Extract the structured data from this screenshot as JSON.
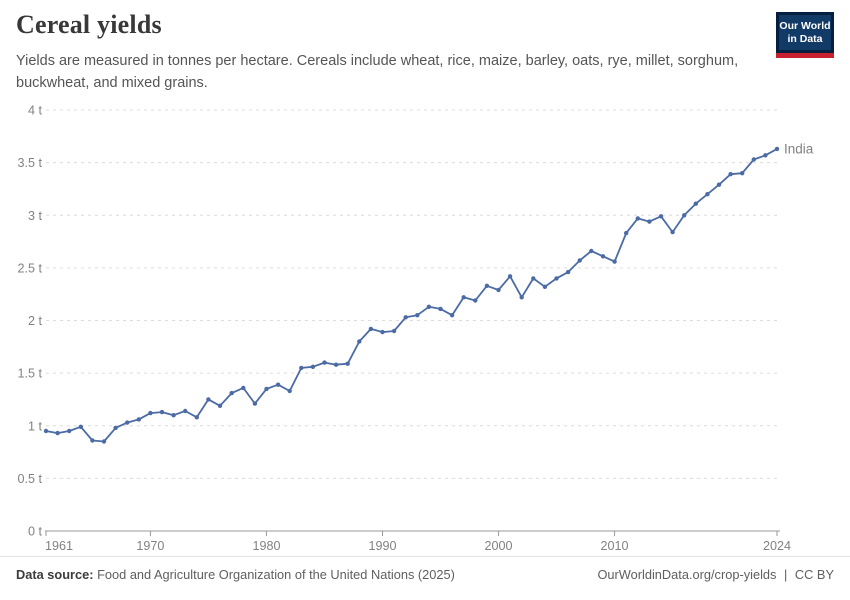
{
  "header": {
    "title": "Cereal yields",
    "subtitle": "Yields are measured in tonnes per hectare. Cereals include wheat, rice, maize, barley, oats, rye, millet, sorghum, buckwheat, and mixed grains.",
    "logo": {
      "line1": "Our World",
      "line2": "in Data"
    }
  },
  "footer": {
    "data_source_label": "Data source:",
    "data_source": "Food and Agriculture Organization of the United Nations (2025)",
    "link": "OurWorldinData.org/crop-yields",
    "separator": "|",
    "license": "CC BY"
  },
  "colors": {
    "line": "#4C6BA5",
    "grid": "#dcdcdc",
    "axis": "#999999",
    "tick_label": "#828282",
    "logo_navy": "#123A66",
    "logo_border": "#041F3F",
    "logo_red": "#C8202F"
  },
  "chart_data": {
    "type": "line",
    "title": "Cereal yields",
    "unit": "tonnes per hectare",
    "entity_label": "India",
    "grid": true,
    "legend_position": "end-of-line",
    "xlim": [
      1961,
      2024
    ],
    "ylim": [
      0,
      4
    ],
    "x_ticks": [
      1961,
      1970,
      1980,
      1990,
      2000,
      2010,
      2024
    ],
    "y_ticks": [
      {
        "value": 0,
        "label": "0 t"
      },
      {
        "value": 0.5,
        "label": "0.5 t"
      },
      {
        "value": 1,
        "label": "1 t"
      },
      {
        "value": 1.5,
        "label": "1.5 t"
      },
      {
        "value": 2,
        "label": "2 t"
      },
      {
        "value": 2.5,
        "label": "2.5 t"
      },
      {
        "value": 3,
        "label": "3 t"
      },
      {
        "value": 3.5,
        "label": "3.5 t"
      },
      {
        "value": 4,
        "label": "4 t"
      }
    ],
    "x": [
      1961,
      1962,
      1963,
      1964,
      1965,
      1966,
      1967,
      1968,
      1969,
      1970,
      1971,
      1972,
      1973,
      1974,
      1975,
      1976,
      1977,
      1978,
      1979,
      1980,
      1981,
      1982,
      1983,
      1984,
      1985,
      1986,
      1987,
      1988,
      1989,
      1990,
      1991,
      1992,
      1993,
      1994,
      1995,
      1996,
      1997,
      1998,
      1999,
      2000,
      2001,
      2002,
      2003,
      2004,
      2005,
      2006,
      2007,
      2008,
      2009,
      2010,
      2011,
      2012,
      2013,
      2014,
      2015,
      2016,
      2017,
      2018,
      2019,
      2020,
      2021,
      2022,
      2023,
      2024
    ],
    "series": [
      {
        "name": "India",
        "color": "#4C6BA5",
        "values": [
          0.95,
          0.93,
          0.95,
          0.99,
          0.86,
          0.85,
          0.98,
          1.03,
          1.06,
          1.12,
          1.13,
          1.1,
          1.14,
          1.08,
          1.25,
          1.19,
          1.31,
          1.36,
          1.21,
          1.35,
          1.39,
          1.33,
          1.55,
          1.56,
          1.6,
          1.58,
          1.59,
          1.8,
          1.92,
          1.89,
          1.9,
          2.03,
          2.05,
          2.13,
          2.11,
          2.05,
          2.22,
          2.19,
          2.33,
          2.29,
          2.42,
          2.22,
          2.4,
          2.32,
          2.4,
          2.46,
          2.57,
          2.66,
          2.61,
          2.56,
          2.83,
          2.97,
          2.94,
          2.99,
          2.84,
          3.0,
          3.11,
          3.2,
          3.29,
          3.39,
          3.4,
          3.53,
          3.57,
          3.63
        ]
      }
    ]
  }
}
